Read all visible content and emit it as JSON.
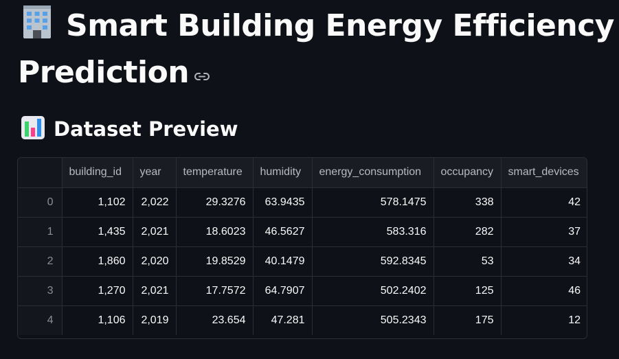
{
  "title": {
    "line1": "Smart Building Energy Efficiency",
    "line2": "Prediction",
    "emoji": "office-building-icon",
    "link_icon": "link-icon"
  },
  "section": {
    "heading": "Dataset Preview",
    "emoji": "bar-chart-icon"
  },
  "table": {
    "columns": [
      "",
      "building_id",
      "year",
      "temperature",
      "humidity",
      "energy_consumption",
      "occupancy",
      "smart_devices"
    ],
    "rows": [
      [
        "0",
        "1,102",
        "2,022",
        "29.3276",
        "63.9435",
        "578.1475",
        "338",
        "42"
      ],
      [
        "1",
        "1,435",
        "2,021",
        "18.6023",
        "46.5627",
        "583.316",
        "282",
        "37"
      ],
      [
        "2",
        "1,860",
        "2,020",
        "19.8529",
        "40.1479",
        "592.8345",
        "53",
        "34"
      ],
      [
        "3",
        "1,270",
        "2,021",
        "17.7572",
        "64.7907",
        "502.2402",
        "125",
        "46"
      ],
      [
        "4",
        "1,106",
        "2,019",
        "23.654",
        "47.281",
        "505.2343",
        "175",
        "12"
      ]
    ]
  }
}
